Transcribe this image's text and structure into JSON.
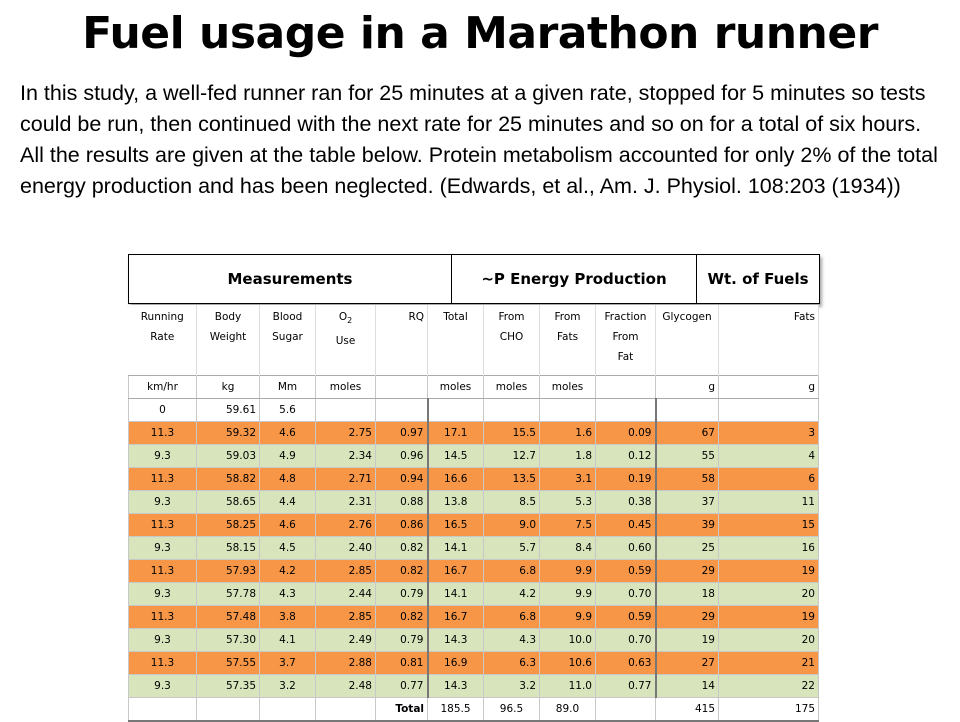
{
  "title": "Fuel usage in a Marathon runner",
  "intro": "In this study, a well-fed runner ran for 25 minutes at a given rate, stopped for 5 minutes so tests could be run, then continued with the next rate for 25 minutes and so on for a total of six hours. All the results are given at the table below. Protein metabolism accounted for only 2% of the total energy production and has been neglected. (Edwards, et al., Am. J. Physiol. 108:203 (1934))",
  "groups": {
    "measurements": "Measurements",
    "energy": "~P Energy Production",
    "fuels": "Wt. of Fuels"
  },
  "columns": {
    "rate": [
      "Running",
      "Rate"
    ],
    "weight": [
      "Body",
      "Weight"
    ],
    "sugar": [
      "Blood",
      "Sugar"
    ],
    "o2": [
      "O",
      "2",
      "Use"
    ],
    "rq": "RQ",
    "total": "Total",
    "cho": [
      "From",
      "CHO"
    ],
    "fats": [
      "From",
      "Fats"
    ],
    "fraction": [
      "Fraction",
      "From",
      "Fat"
    ],
    "glycogen": "Glycogen",
    "fats_wt": "Fats"
  },
  "units": [
    "km/hr",
    "kg",
    "Mm",
    "moles",
    "",
    "moles",
    "moles",
    "moles",
    "",
    "g",
    "g"
  ],
  "rows": [
    {
      "style": "white",
      "cells": [
        "0",
        "59.61",
        "5.6",
        "",
        "",
        "",
        "",
        "",
        "",
        "",
        ""
      ]
    },
    {
      "style": "orange",
      "cells": [
        "11.3",
        "59.32",
        "4.6",
        "2.75",
        "0.97",
        "17.1",
        "15.5",
        "1.6",
        "0.09",
        "67",
        "3"
      ]
    },
    {
      "style": "green",
      "cells": [
        "9.3",
        "59.03",
        "4.9",
        "2.34",
        "0.96",
        "14.5",
        "12.7",
        "1.8",
        "0.12",
        "55",
        "4"
      ]
    },
    {
      "style": "orange",
      "cells": [
        "11.3",
        "58.82",
        "4.8",
        "2.71",
        "0.94",
        "16.6",
        "13.5",
        "3.1",
        "0.19",
        "58",
        "6"
      ]
    },
    {
      "style": "green",
      "cells": [
        "9.3",
        "58.65",
        "4.4",
        "2.31",
        "0.88",
        "13.8",
        "8.5",
        "5.3",
        "0.38",
        "37",
        "11"
      ]
    },
    {
      "style": "orange",
      "cells": [
        "11.3",
        "58.25",
        "4.6",
        "2.76",
        "0.86",
        "16.5",
        "9.0",
        "7.5",
        "0.45",
        "39",
        "15"
      ]
    },
    {
      "style": "green",
      "cells": [
        "9.3",
        "58.15",
        "4.5",
        "2.40",
        "0.82",
        "14.1",
        "5.7",
        "8.4",
        "0.60",
        "25",
        "16"
      ]
    },
    {
      "style": "orange",
      "cells": [
        "11.3",
        "57.93",
        "4.2",
        "2.85",
        "0.82",
        "16.7",
        "6.8",
        "9.9",
        "0.59",
        "29",
        "19"
      ]
    },
    {
      "style": "green",
      "cells": [
        "9.3",
        "57.78",
        "4.3",
        "2.44",
        "0.79",
        "14.1",
        "4.2",
        "9.9",
        "0.70",
        "18",
        "20"
      ]
    },
    {
      "style": "orange",
      "cells": [
        "11.3",
        "57.48",
        "3.8",
        "2.85",
        "0.82",
        "16.7",
        "6.8",
        "9.9",
        "0.59",
        "29",
        "19"
      ]
    },
    {
      "style": "green",
      "cells": [
        "9.3",
        "57.30",
        "4.1",
        "2.49",
        "0.79",
        "14.3",
        "4.3",
        "10.0",
        "0.70",
        "19",
        "20"
      ]
    },
    {
      "style": "orange",
      "cells": [
        "11.3",
        "57.55",
        "3.7",
        "2.88",
        "0.81",
        "16.9",
        "6.3",
        "10.6",
        "0.63",
        "27",
        "21"
      ]
    },
    {
      "style": "green",
      "cells": [
        "9.3",
        "57.35",
        "3.2",
        "2.48",
        "0.77",
        "14.3",
        "3.2",
        "11.0",
        "0.77",
        "14",
        "22"
      ]
    }
  ],
  "total": {
    "label": "Total",
    "total": "185.5",
    "cho": "96.5",
    "fats": "89.0",
    "glycogen": "415",
    "fats_wt": "175"
  }
}
